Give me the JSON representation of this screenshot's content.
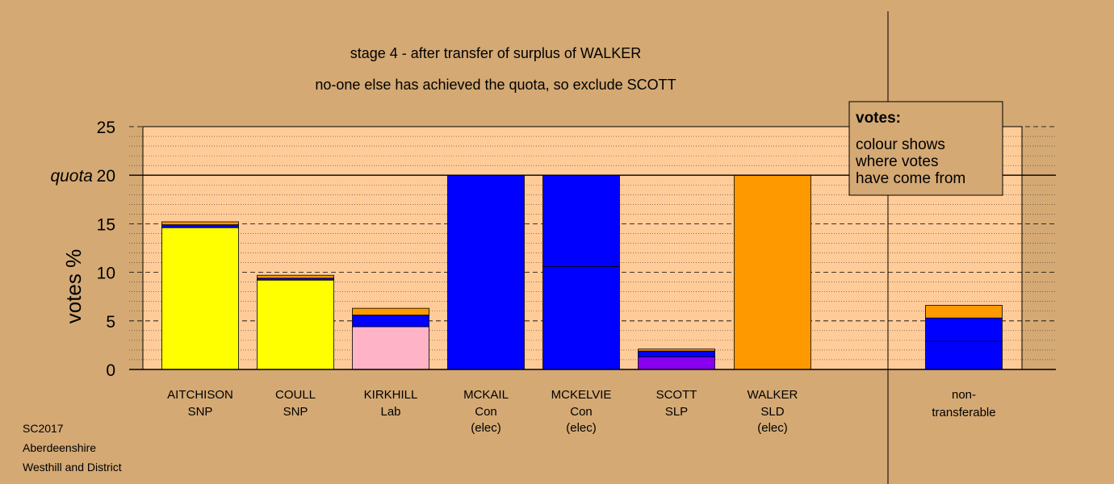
{
  "chart_data": {
    "type": "bar",
    "stacked": true,
    "title": "stage 4 - after transfer of surplus of WALKER",
    "subtitle": "no-one else has achieved the quota, so exclude SCOTT",
    "ylabel": "votes %",
    "ylim": [
      0,
      25
    ],
    "yticks": [
      "0",
      "5",
      "10",
      "15",
      "20",
      "25"
    ],
    "quota": {
      "value": 20,
      "label": "quota",
      "tick": "20"
    },
    "grid": "dashed major every 5, dotted minor every 1",
    "candidates": [
      {
        "name": "AITCHISON",
        "party": "SNP",
        "status": "",
        "segments": [
          {
            "color": "#ffff00",
            "value": 14.6
          },
          {
            "color": "#0000ff",
            "value": 0.3
          },
          {
            "color": "#ff9900",
            "value": 0.3
          }
        ]
      },
      {
        "name": "COULL",
        "party": "SNP",
        "status": "",
        "segments": [
          {
            "color": "#ffff00",
            "value": 9.2
          },
          {
            "color": "#0000ff",
            "value": 0.2
          },
          {
            "color": "#ff9900",
            "value": 0.3
          }
        ]
      },
      {
        "name": "KIRKHILL",
        "party": "Lab",
        "status": "",
        "segments": [
          {
            "color": "#ffb3c6",
            "value": 4.4
          },
          {
            "color": "#0000ff",
            "value": 1.2
          },
          {
            "color": "#ff9900",
            "value": 0.7
          }
        ]
      },
      {
        "name": "MCKAIL",
        "party": "Con",
        "status": "(elec)",
        "segments": [
          {
            "color": "#0000ff",
            "value": 20
          }
        ]
      },
      {
        "name": "MCKELVIE",
        "party": "Con",
        "status": "(elec)",
        "segments": [
          {
            "color": "#0000ff",
            "value": 10.6
          },
          {
            "color": "#0000ff",
            "value": 9.4
          }
        ]
      },
      {
        "name": "SCOTT",
        "party": "SLP",
        "status": "",
        "segments": [
          {
            "color": "#8800ee",
            "value": 1.3
          },
          {
            "color": "#0000ff",
            "value": 0.6
          },
          {
            "color": "#ff9900",
            "value": 0.2
          }
        ]
      },
      {
        "name": "WALKER",
        "party": "SLD",
        "status": "(elec)",
        "segments": [
          {
            "color": "#ff9900",
            "value": 20
          }
        ]
      }
    ],
    "nontransferable": {
      "label1": "non-",
      "label2": "transferable",
      "segments": [
        {
          "color": "#0000ff",
          "value": 2.9
        },
        {
          "color": "#0000ff",
          "value": 2.4
        },
        {
          "color": "#ff9900",
          "value": 1.3
        }
      ]
    },
    "legend": {
      "placement": "top-right",
      "heading": "votes:",
      "lines": [
        "colour shows",
        "where votes",
        "have come from"
      ]
    }
  },
  "footer": [
    "SC2017",
    "Aberdeenshire",
    "Westhill and District"
  ]
}
